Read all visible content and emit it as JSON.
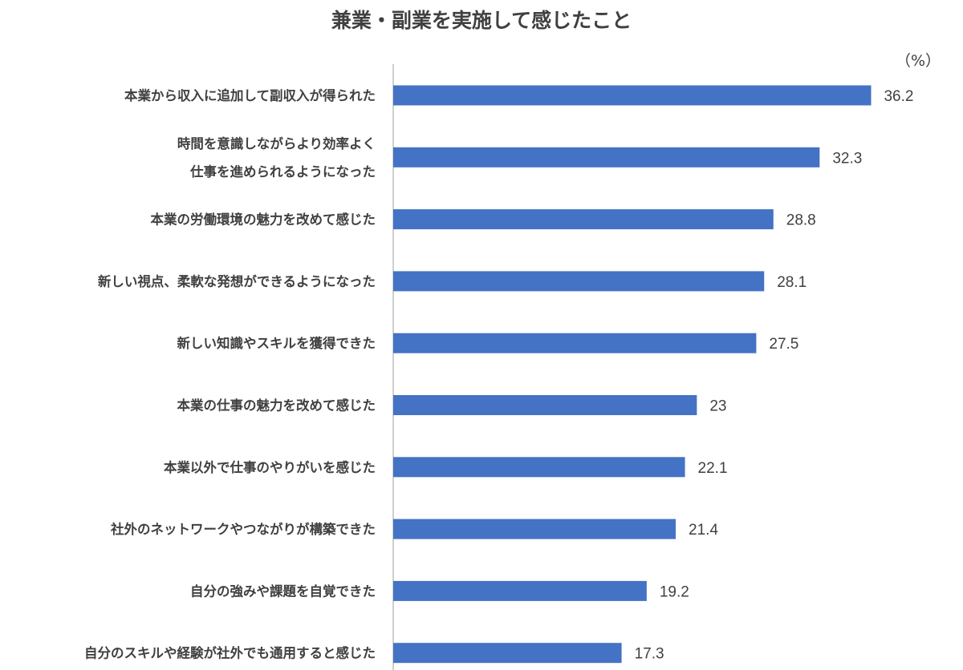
{
  "chart_data": {
    "type": "bar",
    "orientation": "horizontal",
    "title": "兼業・副業を実施して感じたこと",
    "unit": "（%）",
    "categories": [
      [
        "本業から収入に追加して副収入が得られた"
      ],
      [
        "時間を意識しながらより効率よく",
        "仕事を進められるようになった"
      ],
      [
        "本業の労働環境の魅力を改めて感じた"
      ],
      [
        "新しい視点、柔軟な発想ができるようになった"
      ],
      [
        "新しい知識やスキルを獲得できた"
      ],
      [
        "本業の仕事の魅力を改めて感じた"
      ],
      [
        "本業以外で仕事のやりがいを感じた"
      ],
      [
        "社外のネットワークやつながりが構築できた"
      ],
      [
        "自分の強みや課題を自覚できた"
      ],
      [
        "自分のスキルや経験が社外でも通用すると感じた"
      ]
    ],
    "values": [
      36.2,
      32.3,
      28.8,
      28.1,
      27.5,
      23,
      22.1,
      21.4,
      19.2,
      17.3
    ],
    "value_labels": [
      "36.2",
      "32.3",
      "28.8",
      "28.1",
      "27.5",
      "23",
      "22.1",
      "21.4",
      "19.2",
      "17.3"
    ],
    "xlim": [
      0,
      40
    ],
    "grid": false,
    "legend": "none",
    "bar_color": "#4472c4"
  }
}
